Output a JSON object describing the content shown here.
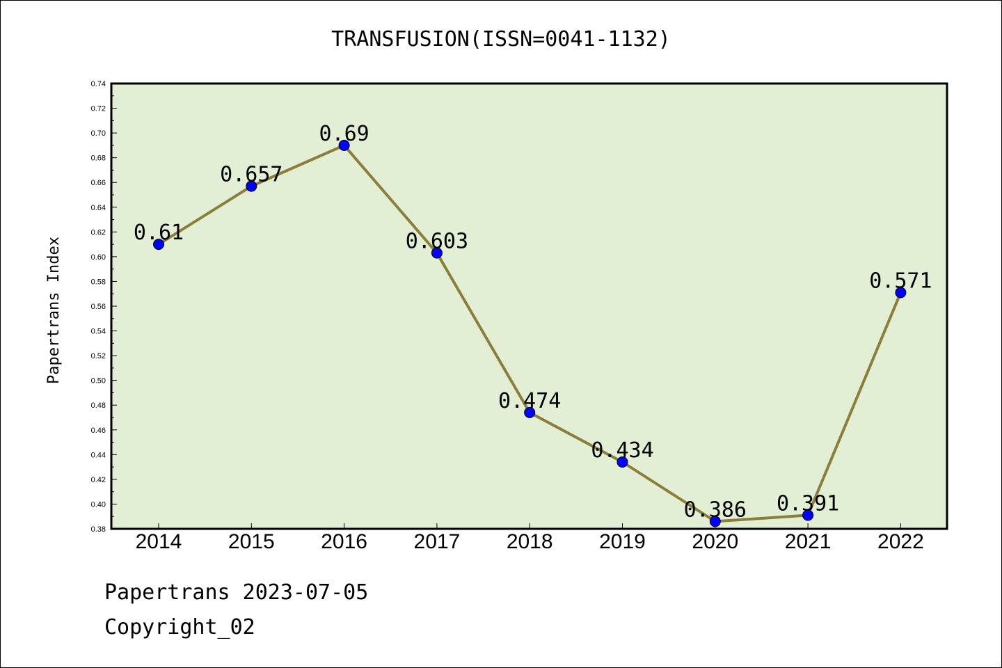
{
  "footer": {
    "line1": "Papertrans 2023-07-05",
    "line2": "Copyright_02"
  },
  "colors": {
    "background": "#e2efd5",
    "line": "#8b7d3a",
    "marker": "#0000ff"
  },
  "chart_data": {
    "type": "line",
    "title": "TRANSFUSION(ISSN=0041-1132)",
    "xlabel": "",
    "ylabel": "Papertrans Index",
    "ylim": [
      0.38,
      0.74
    ],
    "ytick_step": 0.02,
    "grid": false,
    "categories": [
      "2014",
      "2015",
      "2016",
      "2017",
      "2018",
      "2019",
      "2020",
      "2021",
      "2022"
    ],
    "values": [
      0.61,
      0.657,
      0.69,
      0.603,
      0.474,
      0.434,
      0.386,
      0.391,
      0.571
    ],
    "data_labels": [
      "0.61",
      "0.657",
      "0.69",
      "0.603",
      "0.474",
      "0.434",
      "0.386",
      "0.391",
      "0.571"
    ],
    "ytick_labels": [
      "0.38",
      "0.40",
      "0.42",
      "0.44",
      "0.46",
      "0.48",
      "0.50",
      "0.52",
      "0.54",
      "0.56",
      "0.58",
      "0.60",
      "0.62",
      "0.64",
      "0.66",
      "0.68",
      "0.70",
      "0.72",
      "0.74"
    ]
  }
}
